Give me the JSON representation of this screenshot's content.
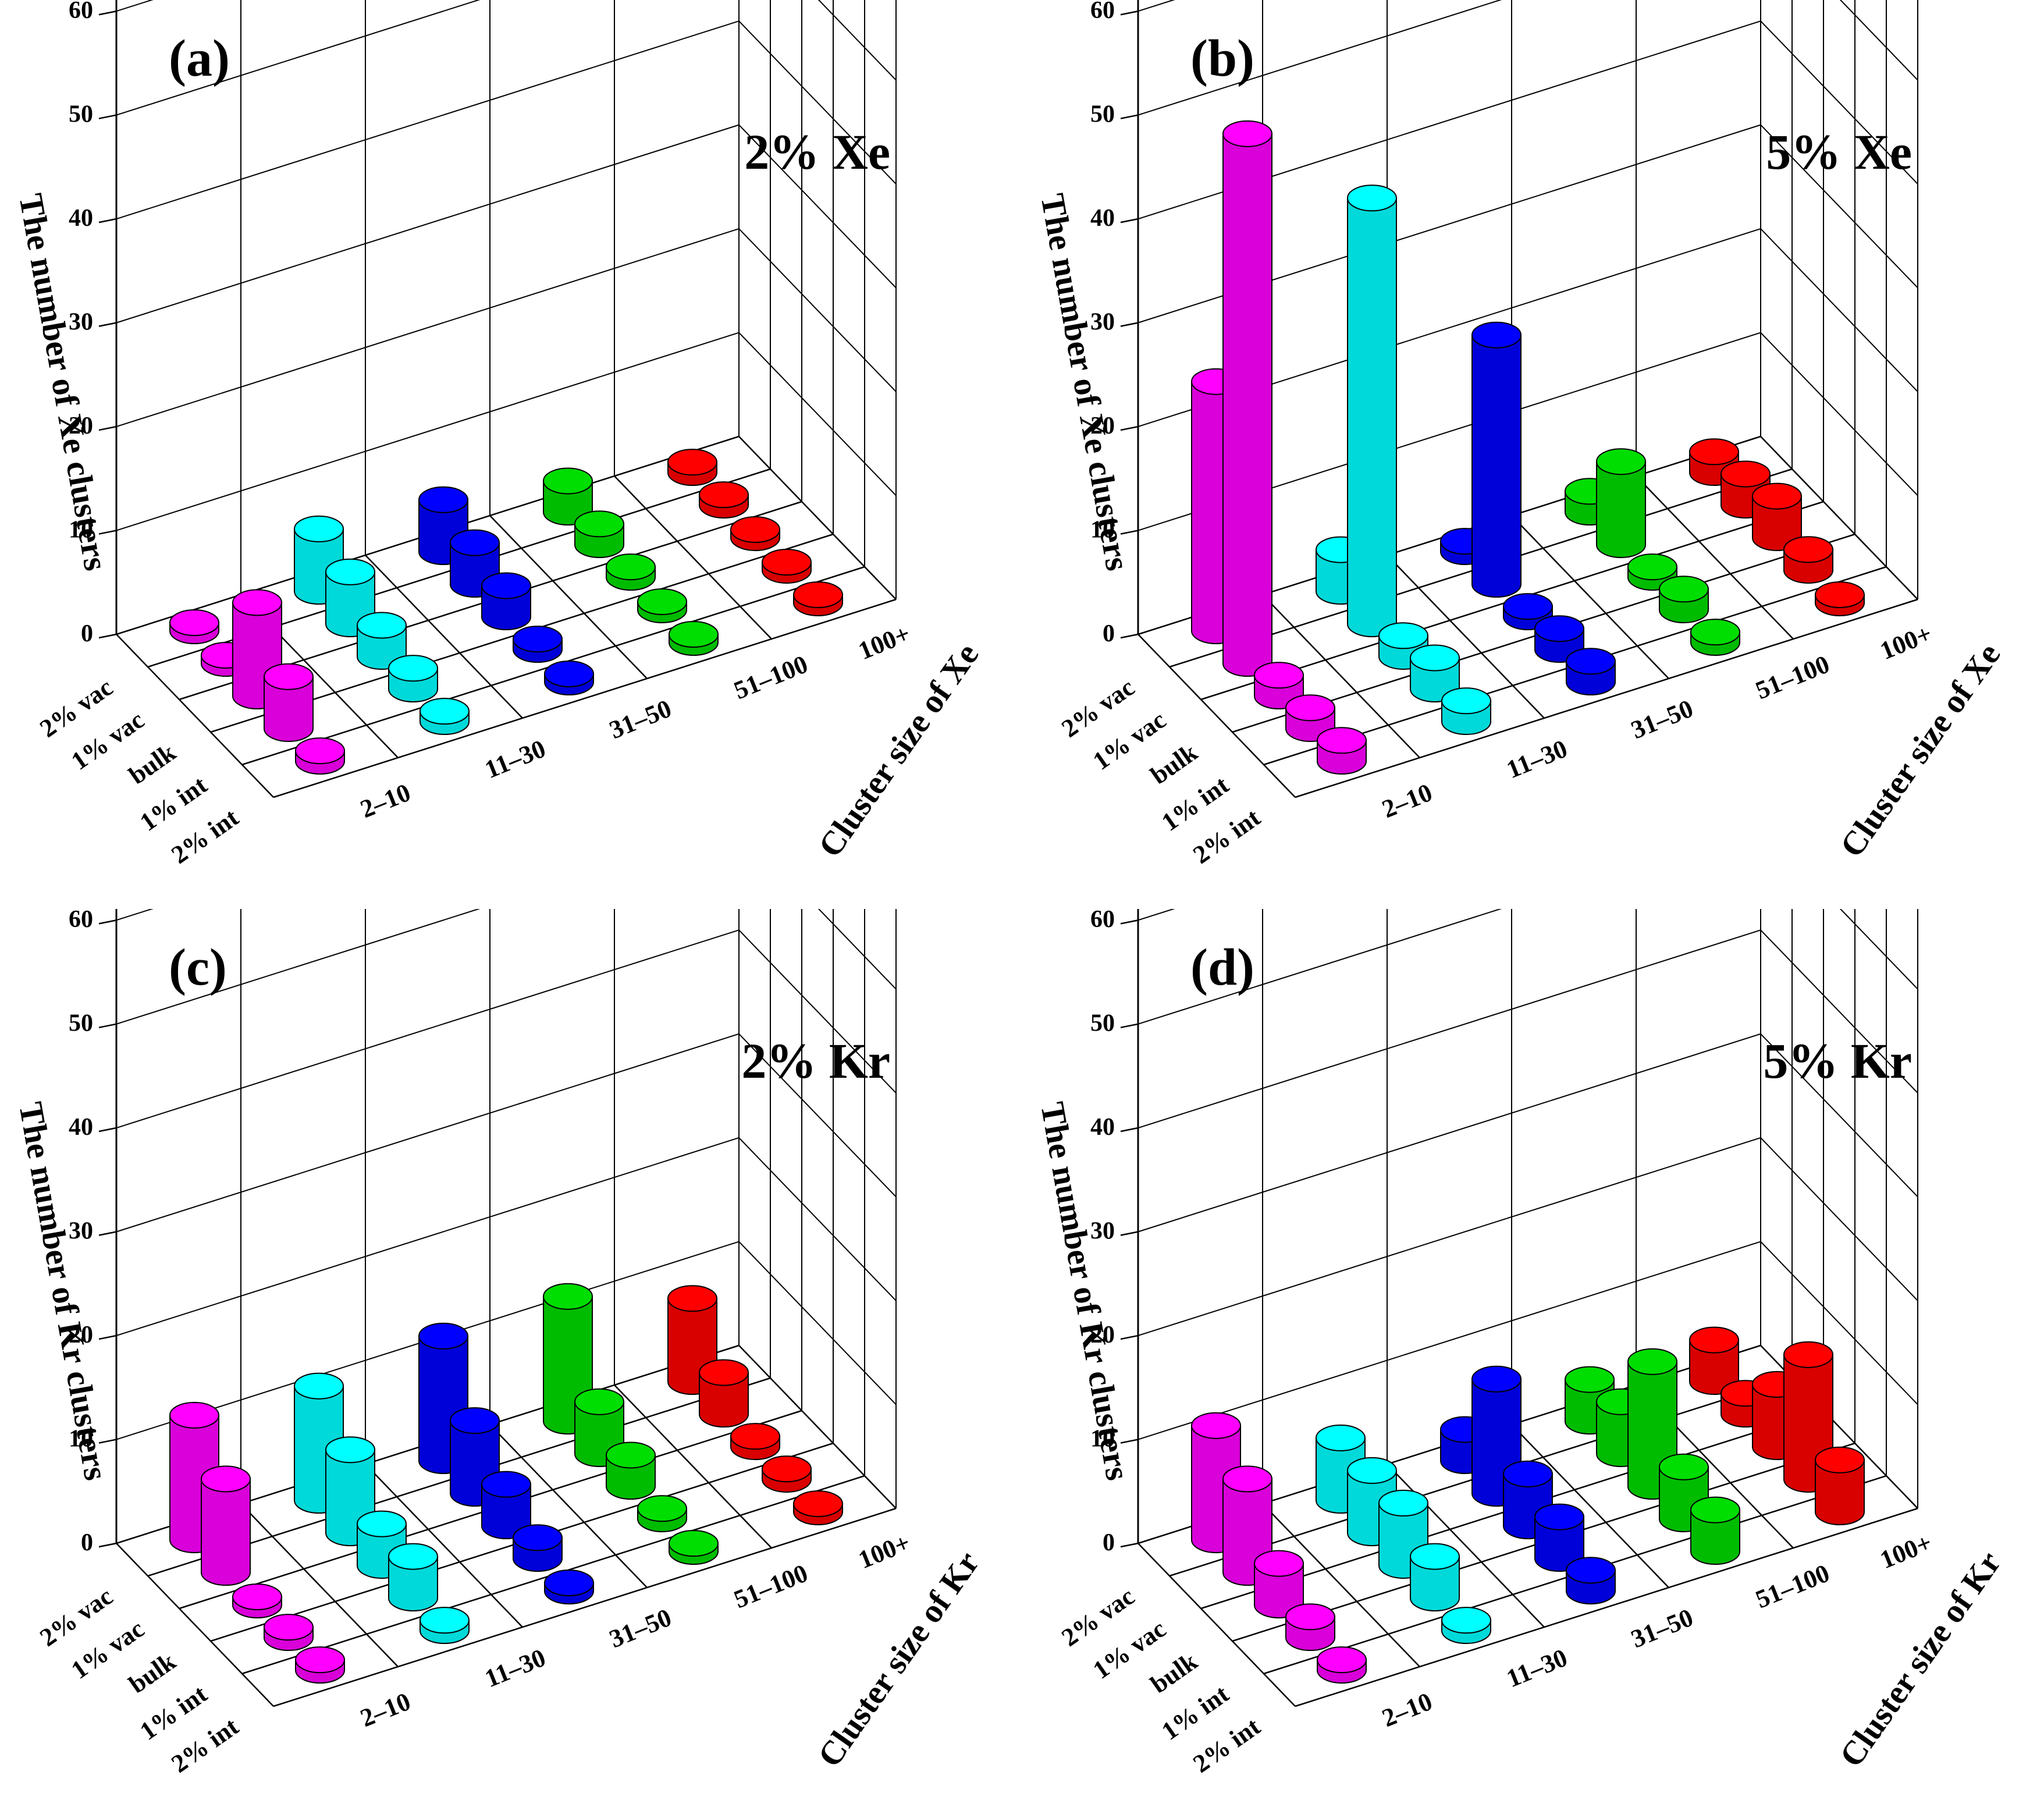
{
  "colors": {
    "2-10": "#ff00ff",
    "11-30": "#00ffff",
    "31-50": "#0000ff",
    "51-100": "#00dd00",
    "100+": "#ff0000"
  },
  "chart_data": [
    {
      "type": "bar3d",
      "panel_label": "(a)",
      "title": "2% Xe",
      "ylabel": "The number of Xe clusters",
      "xlabel": "Cluster size of Xe",
      "zlim": [
        0,
        65
      ],
      "zticks": [
        "0",
        "10",
        "20",
        "30",
        "40",
        "50",
        "60"
      ],
      "sizes": [
        "2–10",
        "11–30",
        "31–50",
        "51–100",
        "100+"
      ],
      "conditions": [
        "2% int",
        "1% int",
        "bulk",
        "1% vac",
        "2% vac"
      ],
      "values": [
        [
          0,
          0,
          0,
          0,
          0
        ],
        [
          1,
          2,
          0,
          0,
          0
        ],
        [
          5,
          4,
          1,
          0,
          0
        ],
        [
          9,
          3,
          3,
          1,
          0
        ],
        [
          0,
          5,
          4,
          2,
          1
        ],
        [
          0,
          6,
          5,
          3,
          0
        ]
      ],
      "values_note": "rows: index 0 unused; rows 1-5 = 2% int, 1% int, bulk, 1% vac, 2% vac; columns = sizes 2-10, 11-30, 31-50, 51-100, 100+",
      "grid": true
    },
    {
      "type": "bar3d",
      "panel_label": "(b)",
      "title": "5% Xe",
      "ylabel": "The number of Xe clusters",
      "xlabel": "Cluster size of Xe",
      "zlim": [
        0,
        65
      ],
      "zticks": [
        "0",
        "10",
        "20",
        "30",
        "40",
        "50",
        "60"
      ],
      "sizes": [
        "2–10",
        "11–30",
        "31–50",
        "51–100",
        "100+"
      ],
      "conditions": [
        "2% int",
        "1% int",
        "bulk",
        "1% vac",
        "2% vac"
      ],
      "values": [
        [
          2,
          2,
          2,
          1,
          0
        ],
        [
          2,
          3,
          2,
          2,
          2
        ],
        [
          51,
          1,
          1,
          3,
          4
        ],
        [
          41,
          0,
          1,
          1,
          3
        ],
        [
          24,
          4,
          1,
          2,
          2
        ],
        [
          8,
          0,
          1,
          0,
          3
        ]
      ],
      "values_note": "rows: 0 = 2% int ... but displayed per columns sizes; see conditions/sizes",
      "grid": true
    },
    {
      "type": "bar3d",
      "panel_label": "(c)",
      "title": "2% Kr",
      "ylabel": "The number of Kr clusters",
      "xlabel": "Cluster size of Kr",
      "zlim": [
        0,
        65
      ],
      "zticks": [
        "0",
        "10",
        "20",
        "30",
        "40",
        "50",
        "60"
      ],
      "sizes": [
        "2–10",
        "11–30",
        "31–50",
        "51–100",
        "100+"
      ],
      "conditions": [
        "2% int",
        "1% int",
        "bulk",
        "1% vac",
        "2% vac"
      ],
      "values": [
        [
          1,
          1,
          7,
          9,
          0
        ],
        [
          0,
          4,
          7,
          0,
          0
        ],
        [
          1,
          4,
          9,
          0,
          0
        ],
        [
          0,
          3,
          5,
          1,
          0
        ],
        [
          0,
          4,
          12,
          1,
          0
        ],
        [
          3,
          1,
          1,
          8,
          0
        ]
      ],
      "values_note": "approximate bar heights read from the figure",
      "grid": true
    },
    {
      "type": "bar3d",
      "panel_label": "(d)",
      "title": "5% Kr",
      "ylabel": "The number of Kr clusters",
      "xlabel": "Cluster size of Kr",
      "zlim": [
        0,
        65
      ],
      "zticks": [
        "0",
        "10",
        "20",
        "30",
        "40",
        "50",
        "60"
      ],
      "sizes": [
        "2–10",
        "11–30",
        "31–50",
        "51–100",
        "100+"
      ],
      "conditions": [
        "2% int",
        "1% int",
        "bulk",
        "1% vac",
        "2% vac"
      ],
      "values": [
        [
          1,
          2,
          4,
          9,
          11
        ],
        [
          1,
          4,
          6,
          6,
          6
        ],
        [
          2,
          4,
          5,
          11,
          3
        ],
        [
          4,
          5,
          12,
          5,
          4
        ],
        [
          5,
          12,
          6,
          2,
          4
        ],
        [
          4,
          12,
          14,
          4,
          1
        ]
      ],
      "values_note": "approximate bar heights read from the figure",
      "grid": true
    }
  ]
}
